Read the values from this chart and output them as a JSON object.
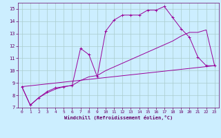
{
  "xlabel": "Windchill (Refroidissement éolien,°C)",
  "background_color": "#cceeff",
  "grid_color": "#aacccc",
  "line_color": "#990099",
  "xlim": [
    -0.5,
    23.5
  ],
  "ylim": [
    7,
    15.5
  ],
  "xticks": [
    0,
    1,
    2,
    3,
    4,
    5,
    6,
    7,
    8,
    9,
    10,
    11,
    12,
    13,
    14,
    15,
    16,
    17,
    18,
    19,
    20,
    21,
    22,
    23
  ],
  "yticks": [
    7,
    8,
    9,
    10,
    11,
    12,
    13,
    14,
    15
  ],
  "series1_x": [
    0,
    1,
    2,
    3,
    4,
    5,
    6,
    7,
    8,
    9,
    10,
    11,
    12,
    13,
    14,
    15,
    16,
    17,
    18,
    19,
    20,
    21,
    22,
    23
  ],
  "series1_y": [
    8.7,
    7.2,
    7.8,
    8.3,
    8.6,
    8.7,
    8.8,
    11.8,
    11.3,
    9.5,
    13.2,
    14.1,
    14.5,
    14.5,
    14.5,
    14.9,
    14.9,
    15.2,
    14.3,
    13.4,
    12.7,
    11.1,
    10.4,
    10.4
  ],
  "series2_x": [
    0,
    1,
    2,
    3,
    4,
    5,
    6,
    7,
    8,
    9,
    10,
    11,
    12,
    13,
    14,
    15,
    16,
    17,
    18,
    19,
    20,
    21,
    22,
    23
  ],
  "series2_y": [
    8.7,
    7.2,
    7.8,
    8.2,
    8.5,
    8.7,
    8.8,
    9.2,
    9.5,
    9.6,
    10.0,
    10.3,
    10.6,
    10.9,
    11.2,
    11.5,
    11.8,
    12.1,
    12.4,
    12.8,
    13.1,
    13.1,
    13.3,
    10.4
  ],
  "series3_x": [
    0,
    23
  ],
  "series3_y": [
    8.7,
    10.4
  ],
  "figsize": [
    3.2,
    2.0
  ],
  "dpi": 100
}
